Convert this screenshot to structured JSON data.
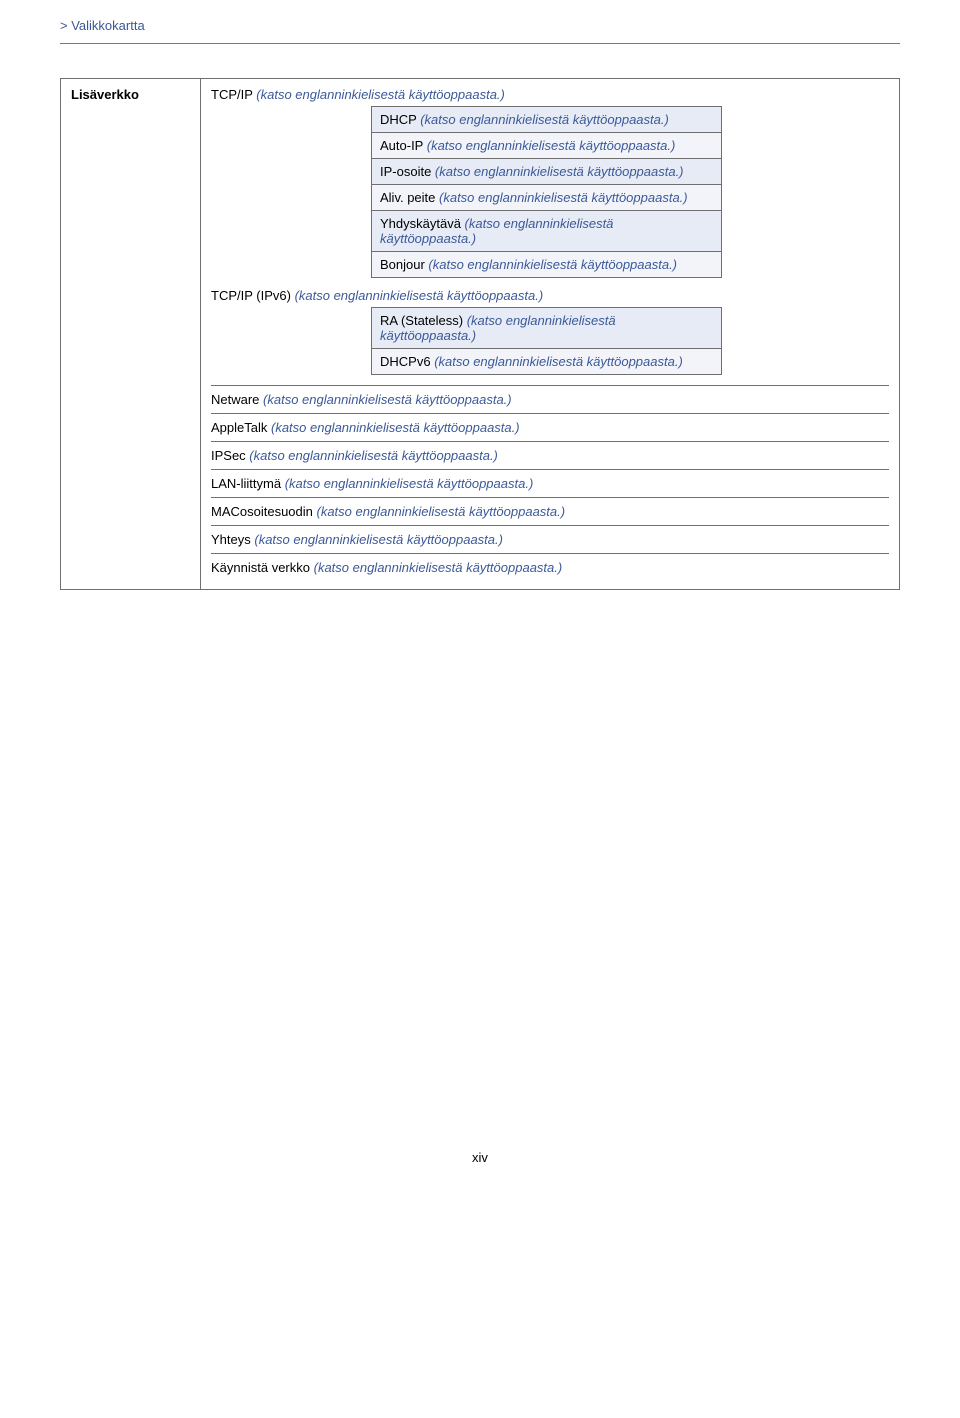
{
  "breadcrumb_prefix": "> ",
  "breadcrumb_label": "Valikkokartta",
  "left_header": "Lisäverkko",
  "groups": [
    {
      "label_plain": "TCP/IP ",
      "label_link": "(katso englanninkielisestä käyttöoppaasta.)",
      "sub": [
        {
          "plain": "DHCP ",
          "link": "(katso englanninkielisestä käyttöoppaasta.)"
        },
        {
          "plain": "Auto-IP ",
          "link": "(katso englanninkielisestä käyttöoppaasta.)"
        },
        {
          "plain": "IP-osoite ",
          "link": "(katso englanninkielisestä käyttöoppaasta.)"
        },
        {
          "plain": "Aliv. peite ",
          "link": "(katso englanninkielisestä käyttöoppaasta.)"
        },
        {
          "plain": "Yhdyskäytävä ",
          "link": "(katso englanninkielisestä käyttöoppaasta.)"
        },
        {
          "plain": "Bonjour ",
          "link": "(katso englanninkielisestä käyttöoppaasta.)"
        }
      ]
    },
    {
      "label_plain": "TCP/IP (IPv6) ",
      "label_link": "(katso englanninkielisestä käyttöoppaasta.)",
      "sub": [
        {
          "plain": "RA (Stateless) ",
          "link": "(katso englanninkielisestä käyttöoppaasta.)"
        },
        {
          "plain": "DHCPv6 ",
          "link": "(katso englanninkielisestä käyttöoppaasta.)"
        }
      ]
    }
  ],
  "flat_rows": [
    {
      "plain": "Netware ",
      "link": "(katso englanninkielisestä käyttöoppaasta.)"
    },
    {
      "plain": "AppleTalk ",
      "link": "(katso englanninkielisestä käyttöoppaasta.)"
    },
    {
      "plain": "IPSec ",
      "link": "(katso englanninkielisestä käyttöoppaasta.)"
    },
    {
      "plain": "LAN-liittymä ",
      "link": "(katso englanninkielisestä käyttöoppaasta.)"
    },
    {
      "plain": "MACosoitesuodin ",
      "link": "(katso englanninkielisestä käyttöoppaasta.)"
    },
    {
      "plain": "Yhteys ",
      "link": "(katso englanninkielisestä käyttöoppaasta.)"
    },
    {
      "plain": "Käynnistä verkko ",
      "link": "(katso englanninkielisestä käyttöoppaasta.)"
    }
  ],
  "page_number": "xiv",
  "colors": {
    "link": "#3b5998",
    "border": "#6f6f6f",
    "row_odd": "#e6ebf5",
    "row_even": "#f2f4fa",
    "rule": "#5a7bb5"
  }
}
